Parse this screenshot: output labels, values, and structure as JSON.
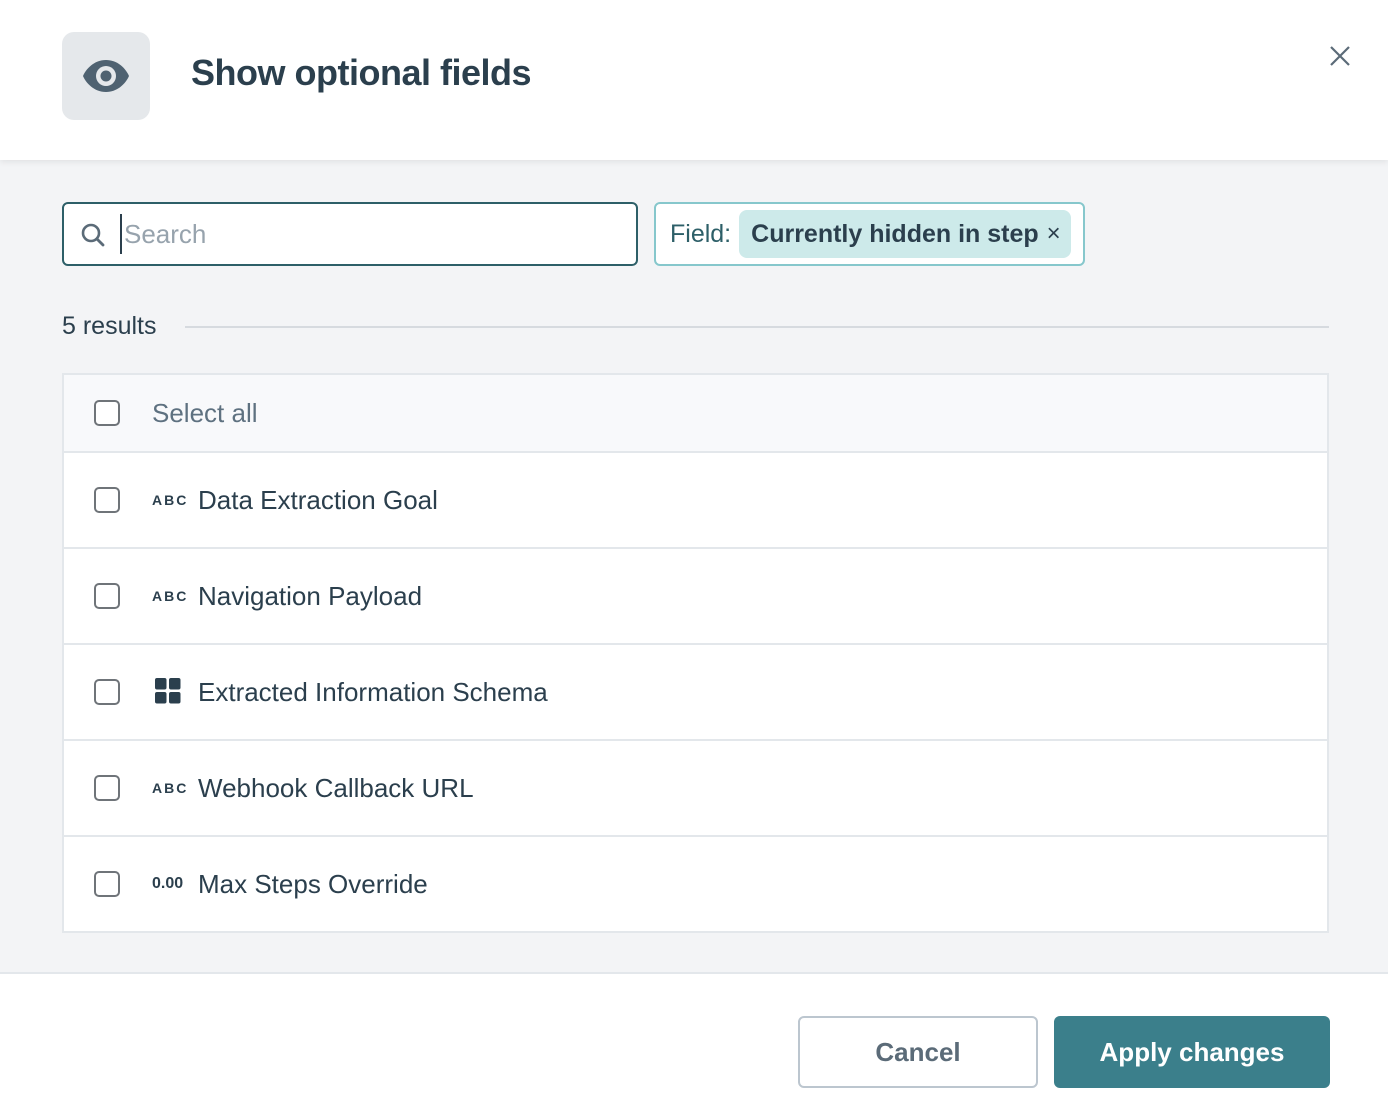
{
  "dialog": {
    "title": "Show optional fields",
    "icon": "eye-icon"
  },
  "search": {
    "placeholder": "Search",
    "value": ""
  },
  "filter": {
    "label": "Field:",
    "chip": "Currently hidden in step",
    "chip_remove": "×"
  },
  "results": {
    "count_label": "5 results"
  },
  "list": {
    "select_all": "Select all",
    "items": [
      {
        "type": "ABC",
        "label": "Data Extraction Goal",
        "checked": false
      },
      {
        "type": "ABC",
        "label": "Navigation Payload",
        "checked": false
      },
      {
        "type": "grid-icon",
        "label": "Extracted Information Schema",
        "checked": false
      },
      {
        "type": "ABC",
        "label": "Webhook Callback URL",
        "checked": false
      },
      {
        "type": "0.00",
        "label": "Max Steps Override",
        "checked": false
      }
    ]
  },
  "footer": {
    "cancel": "Cancel",
    "apply": "Apply changes"
  },
  "colors": {
    "primary": "#3b7f8b",
    "chip_bg": "#cdeaea",
    "text": "#2b3f4d"
  }
}
